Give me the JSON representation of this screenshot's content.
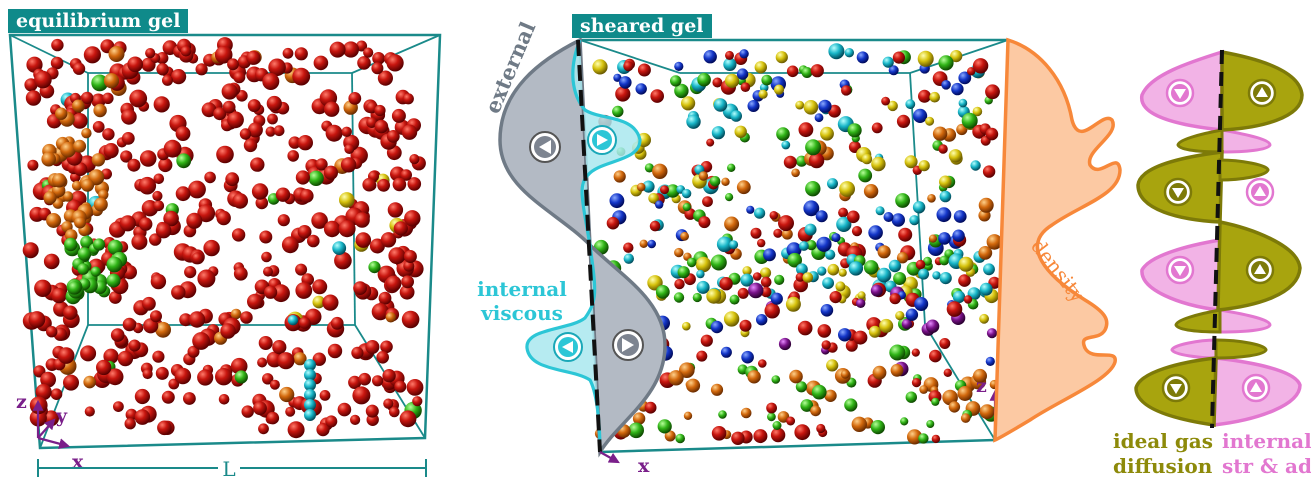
{
  "panels": {
    "left_title": "equilibrium gel",
    "middle_title": "sheared gel"
  },
  "axes": {
    "z": "z",
    "y": "y",
    "x": "x",
    "length": "L"
  },
  "labels": {
    "external": "external",
    "internal_viscous_1": "internal",
    "internal_viscous_2": "viscous",
    "density": "density",
    "ideal_gas_1": "ideal gas",
    "ideal_gas_2": "diffusion",
    "internal_str_1": "internal",
    "internal_str_2": "str & ad"
  },
  "colors": {
    "box": "#1a8a8a",
    "tag": "#0f8a8a",
    "external_fill": "#b3bac4",
    "external_stroke": "#707a86",
    "viscous": "#2cc6d6",
    "density_fill": "#fcc9a3",
    "density_stroke": "#f7883a",
    "ideal_gas": "#a8a40e",
    "internal_str": "#e277d0",
    "axis_arrow": "#7a1f8a",
    "particle_main": "#b31212"
  }
}
